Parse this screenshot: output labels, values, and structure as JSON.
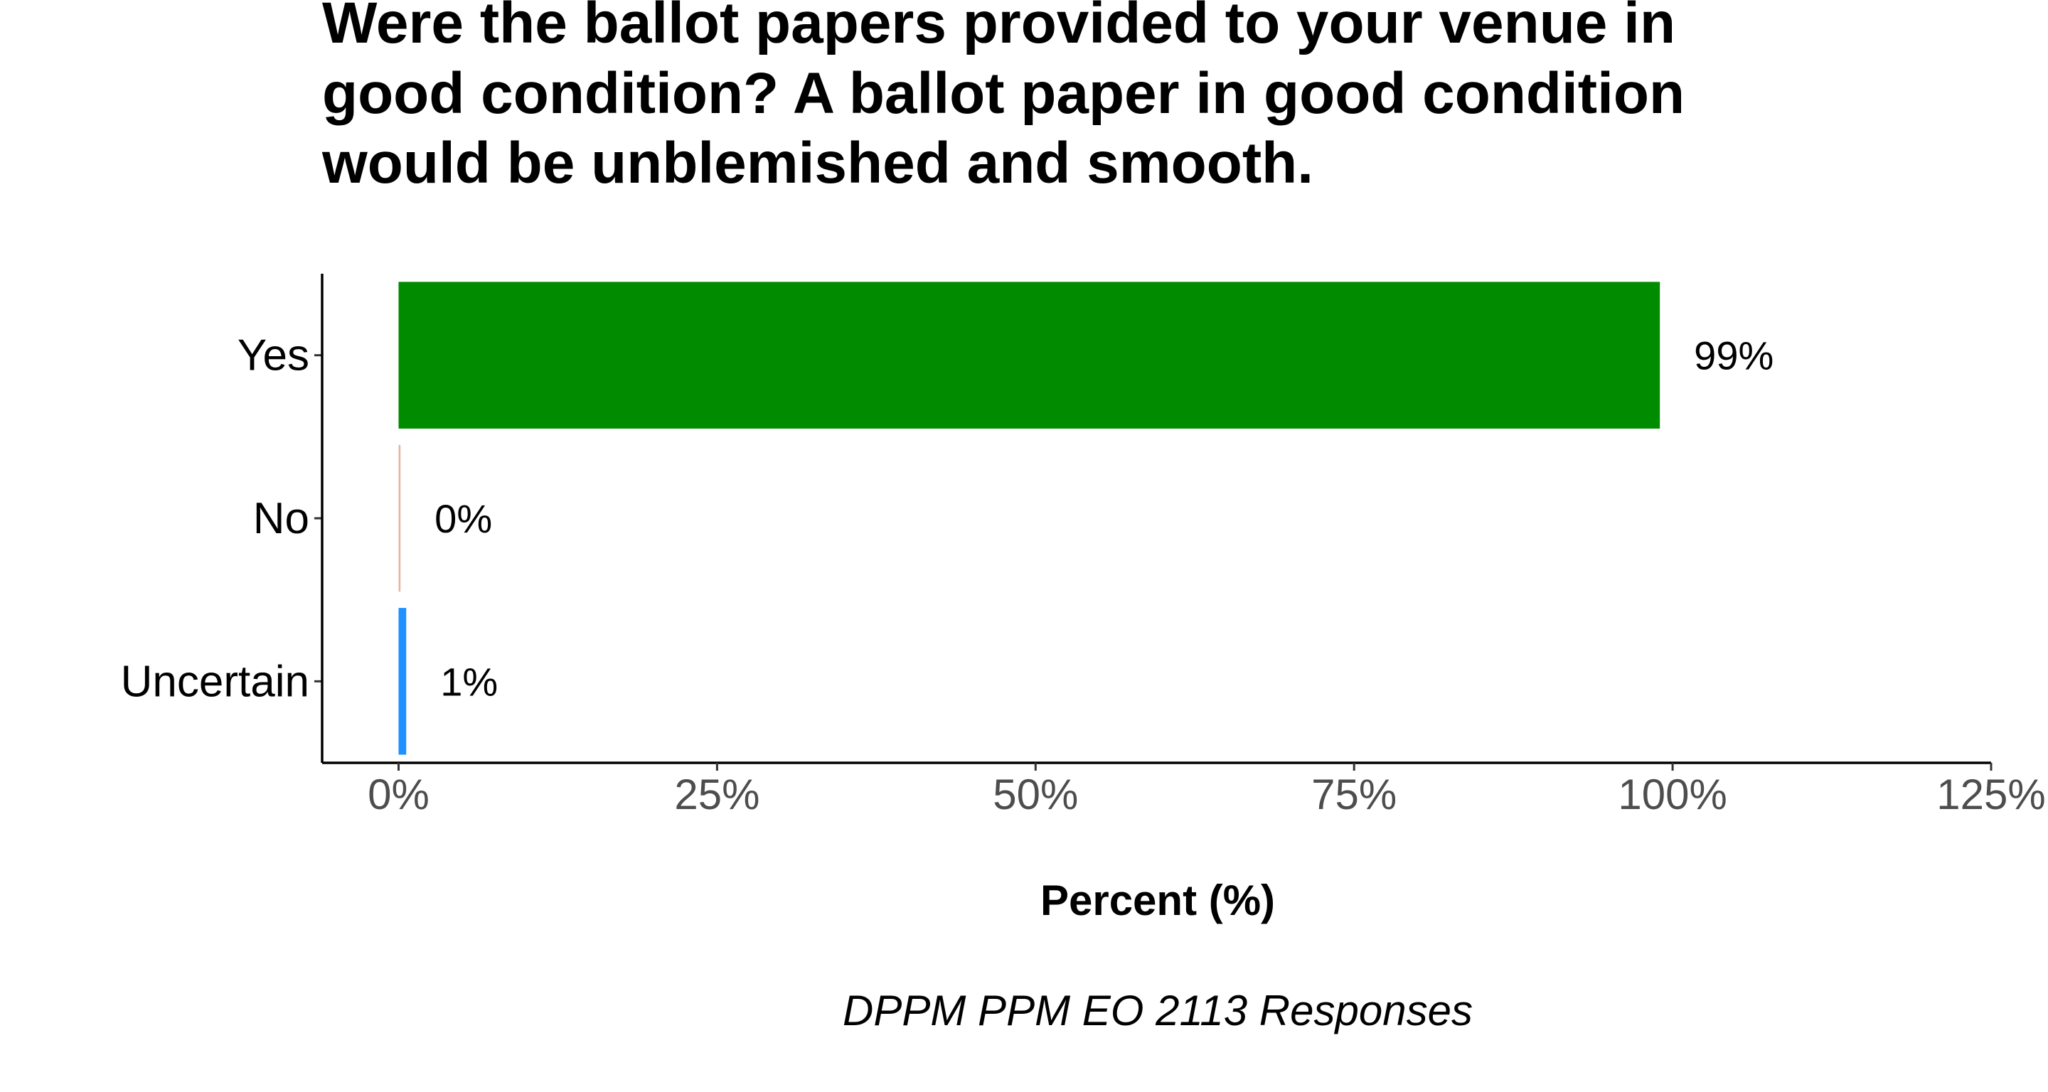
{
  "chart_data": {
    "type": "bar",
    "orientation": "horizontal",
    "title": "Were the ballot papers provided to your venue in good condition? A ballot paper in good condition would be unblemished and smooth.",
    "title_lines": [
      "Were the ballot papers provided to your venue in",
      "good condition? A ballot paper in good condition",
      "would be unblemished and smooth."
    ],
    "categories": [
      "Yes",
      "No",
      "Uncertain"
    ],
    "values": [
      99,
      0.15,
      0.6
    ],
    "value_labels": [
      "99%",
      "0%",
      "1%"
    ],
    "colors": [
      "#008B00",
      "#E8B4A0",
      "#1E90FF"
    ],
    "xlabel": "Percent (%)",
    "ylabel": "",
    "xlim": [
      -6,
      125
    ],
    "xticks": [
      0,
      25,
      50,
      75,
      100,
      125
    ],
    "xtick_labels": [
      "0%",
      "25%",
      "50%",
      "75%",
      "100%",
      "125%"
    ],
    "caption": "DPPM PPM EO 2113 Responses",
    "grid": false,
    "legend": "none"
  }
}
